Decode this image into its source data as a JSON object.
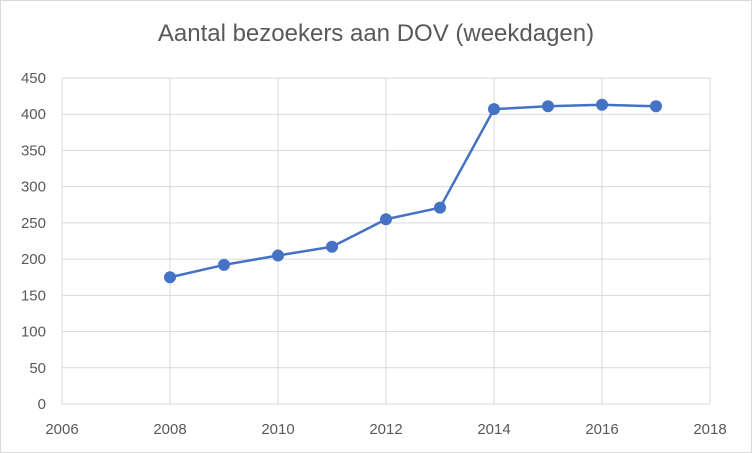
{
  "chart_data": {
    "type": "scatter",
    "title": "Aantal bezoekers aan DOV (weekdagen)",
    "xlabel": "",
    "ylabel": "",
    "xlim": [
      2006,
      2018
    ],
    "ylim": [
      0,
      450
    ],
    "x_ticks": [
      2006,
      2008,
      2010,
      2012,
      2014,
      2016,
      2018
    ],
    "y_ticks": [
      0,
      50,
      100,
      150,
      200,
      250,
      300,
      350,
      400,
      450
    ],
    "x_tick_labels": [
      "2006",
      "2008",
      "2010",
      "2012",
      "2014",
      "2016",
      "2018"
    ],
    "y_tick_labels": [
      "0",
      "50",
      "100",
      "150",
      "200",
      "250",
      "300",
      "350",
      "400",
      "450"
    ],
    "grid": true,
    "series": [
      {
        "color": "#4472c4",
        "style": "line-with-markers",
        "x": [
          2008,
          2009,
          2010,
          2011,
          2012,
          2013,
          2014,
          2015,
          2016,
          2017
        ],
        "y": [
          175,
          192,
          205,
          217,
          255,
          271,
          407,
          411,
          413,
          411
        ]
      }
    ]
  }
}
